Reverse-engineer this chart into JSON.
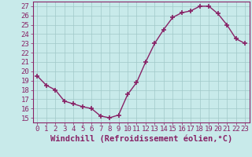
{
  "x": [
    0,
    1,
    2,
    3,
    4,
    5,
    6,
    7,
    8,
    9,
    10,
    11,
    12,
    13,
    14,
    15,
    16,
    17,
    18,
    19,
    20,
    21,
    22,
    23
  ],
  "y": [
    19.5,
    18.5,
    18.0,
    16.8,
    16.5,
    16.2,
    16.0,
    15.2,
    15.0,
    15.3,
    17.5,
    18.8,
    21.0,
    23.0,
    24.5,
    25.8,
    26.3,
    26.5,
    27.0,
    27.0,
    26.2,
    25.0,
    23.5,
    23.0
  ],
  "line_color": "#882266",
  "marker": "+",
  "marker_size": 4,
  "bg_color": "#c8eaea",
  "grid_color": "#a0c8c8",
  "xlabel": "Windchill (Refroidissement éolien,°C)",
  "xlabel_fontsize": 7.5,
  "ylabel_ticks": [
    15,
    16,
    17,
    18,
    19,
    20,
    21,
    22,
    23,
    24,
    25,
    26,
    27
  ],
  "ylim": [
    14.5,
    27.5
  ],
  "xlim": [
    -0.5,
    23.5
  ],
  "tick_fontsize": 6.5,
  "line_width": 1.0
}
